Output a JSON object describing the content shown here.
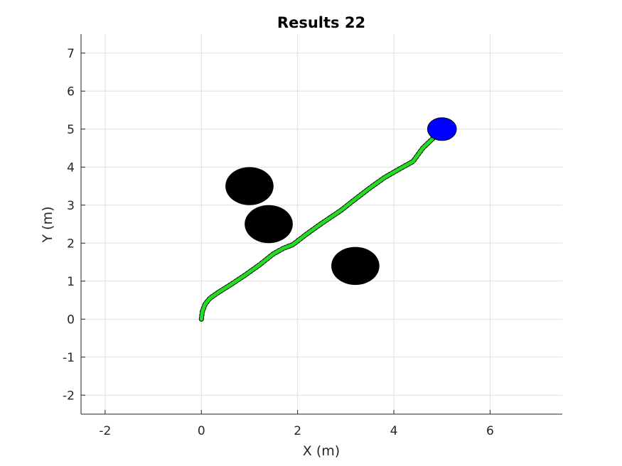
{
  "chart_data": {
    "type": "scatter",
    "title": "Results 22",
    "xlabel": "X (m)",
    "ylabel": "Y (m)",
    "xlim": [
      -2.5,
      7.5
    ],
    "ylim": [
      -2.5,
      7.5
    ],
    "xticks": [
      -2,
      0,
      2,
      4,
      6
    ],
    "yticks": [
      -2,
      -1,
      0,
      1,
      2,
      3,
      4,
      5,
      6,
      7
    ],
    "xtick_labels": [
      "-2",
      "0",
      "2",
      "4",
      "6"
    ],
    "ytick_labels": [
      "-2",
      "-1",
      "0",
      "1",
      "2",
      "3",
      "4",
      "5",
      "6",
      "7"
    ],
    "grid": true,
    "colors": {
      "path": "#22dd22",
      "path_noise": "#000000",
      "obstacle": "#000000",
      "goal": "#0000ff"
    },
    "obstacles": [
      {
        "x": 1.0,
        "y": 3.5,
        "radius": 0.5
      },
      {
        "x": 1.4,
        "y": 2.5,
        "radius": 0.5
      },
      {
        "x": 3.2,
        "y": 1.4,
        "radius": 0.5
      }
    ],
    "goal": {
      "x": 5.0,
      "y": 5.0,
      "radius": 0.3
    },
    "path": {
      "x": [
        0.0,
        0.02,
        0.08,
        0.18,
        0.35,
        0.6,
        0.9,
        1.2,
        1.5,
        1.7,
        1.9,
        2.2,
        2.5,
        2.9,
        3.2,
        3.5,
        3.8,
        4.1,
        4.4,
        4.6,
        4.85
      ],
      "y": [
        0.0,
        0.2,
        0.4,
        0.55,
        0.7,
        0.9,
        1.15,
        1.42,
        1.72,
        1.86,
        1.96,
        2.25,
        2.52,
        2.86,
        3.16,
        3.45,
        3.72,
        3.94,
        4.15,
        4.5,
        4.8
      ]
    }
  }
}
